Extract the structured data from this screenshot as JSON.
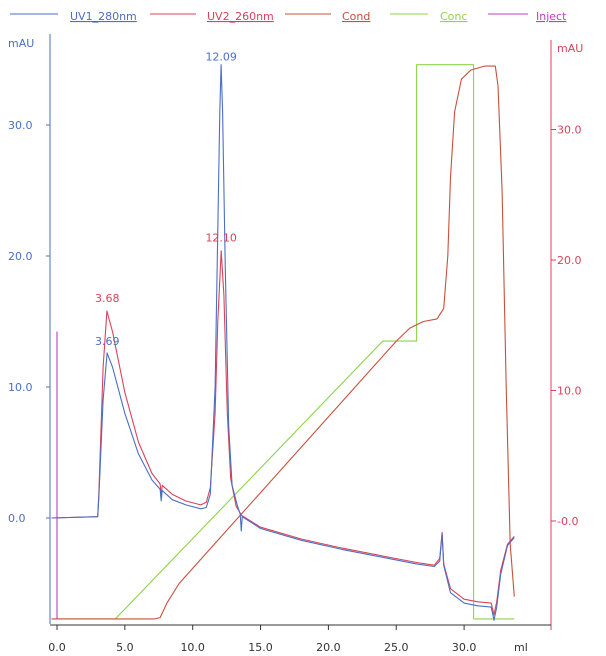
{
  "chart_data": {
    "type": "line",
    "xlabel": "ml",
    "xlim": [
      0,
      32.5
    ],
    "x_ticks": [
      "0.0",
      "5.0",
      "10.0",
      "15.0",
      "20.0",
      "25.0",
      "30.0"
    ],
    "left_axis": {
      "unit": "mAU",
      "ylim": [
        -8,
        35
      ],
      "ticks": [
        "0.0",
        "10.0",
        "20.0",
        "30.0"
      ],
      "color": "#4a6fc4"
    },
    "right_axis": {
      "unit": "mAU",
      "ylim": [
        -8,
        36
      ],
      "ticks": [
        "-0.0",
        "10.0",
        "20.0",
        "30.0"
      ],
      "color": "#d9435a"
    },
    "legend": {
      "placement": "top",
      "entries": [
        {
          "name": "UV1_280nm",
          "color": "#4a6fc4"
        },
        {
          "name": "UV2_260nm",
          "color": "#d9435a"
        },
        {
          "name": "Cond",
          "color": "#c8503c"
        },
        {
          "name": "Conc",
          "color": "#8ed44a"
        },
        {
          "name": "Inject",
          "color": "#c040b8"
        }
      ]
    },
    "peak_labels": [
      {
        "text": "12.09",
        "x": 12.1,
        "y": 34.6,
        "color": "#4a6fc4"
      },
      {
        "text": "12.10",
        "x": 12.1,
        "y": 20.8,
        "color": "#d9435a"
      },
      {
        "text": "3.68",
        "x": 3.7,
        "y": 16.2,
        "color": "#d9435a"
      },
      {
        "text": "3.69",
        "x": 3.7,
        "y": 12.9,
        "color": "#4a6fc4"
      }
    ],
    "series": [
      {
        "name": "UV1_280nm",
        "color": "#4a6fc4",
        "points": [
          [
            -0.4,
            0.0
          ],
          [
            3.0,
            0.1
          ],
          [
            3.08,
            1.5
          ],
          [
            3.4,
            9.0
          ],
          [
            3.69,
            12.6
          ],
          [
            4.1,
            11.5
          ],
          [
            5.0,
            8.0
          ],
          [
            6.0,
            4.9
          ],
          [
            7.0,
            2.9
          ],
          [
            7.6,
            2.2
          ],
          [
            7.68,
            1.3
          ],
          [
            7.75,
            2.1
          ],
          [
            8.5,
            1.4
          ],
          [
            9.5,
            1.0
          ],
          [
            10.6,
            0.7
          ],
          [
            11.0,
            0.8
          ],
          [
            11.3,
            1.8
          ],
          [
            11.65,
            10.0
          ],
          [
            11.85,
            22.0
          ],
          [
            12.0,
            31.0
          ],
          [
            12.09,
            34.6
          ],
          [
            12.2,
            31.0
          ],
          [
            12.4,
            19.0
          ],
          [
            12.65,
            7.0
          ],
          [
            12.9,
            2.5
          ],
          [
            13.3,
            0.9
          ],
          [
            13.5,
            0.3
          ],
          [
            13.58,
            -1.0
          ],
          [
            13.65,
            0.1
          ],
          [
            15.0,
            -0.8
          ],
          [
            18.0,
            -1.7
          ],
          [
            21.0,
            -2.4
          ],
          [
            24.0,
            -3.0
          ],
          [
            26.5,
            -3.5
          ],
          [
            27.8,
            -3.7
          ],
          [
            28.2,
            -3.3
          ],
          [
            28.38,
            -1.2
          ],
          [
            28.5,
            -3.6
          ],
          [
            29.0,
            -5.7
          ],
          [
            30.0,
            -6.5
          ],
          [
            31.0,
            -6.7
          ],
          [
            32.0,
            -6.8
          ],
          [
            32.2,
            -7.8
          ],
          [
            32.4,
            -6.8
          ],
          [
            32.7,
            -4.3
          ],
          [
            33.2,
            -2.1
          ],
          [
            33.7,
            -1.5
          ]
        ]
      },
      {
        "name": "UV2_260nm",
        "color": "#d9435a",
        "points": [
          [
            -0.4,
            0.0
          ],
          [
            3.0,
            0.1
          ],
          [
            3.08,
            1.8
          ],
          [
            3.4,
            11.5
          ],
          [
            3.68,
            15.8
          ],
          [
            4.1,
            14.2
          ],
          [
            5.0,
            9.6
          ],
          [
            6.0,
            5.8
          ],
          [
            7.0,
            3.4
          ],
          [
            7.6,
            2.6
          ],
          [
            7.68,
            1.7
          ],
          [
            7.75,
            2.5
          ],
          [
            8.5,
            1.8
          ],
          [
            9.5,
            1.3
          ],
          [
            10.6,
            1.0
          ],
          [
            11.0,
            1.2
          ],
          [
            11.3,
            2.3
          ],
          [
            11.65,
            8.0
          ],
          [
            11.85,
            15.0
          ],
          [
            12.1,
            20.4
          ],
          [
            12.3,
            17.0
          ],
          [
            12.55,
            8.0
          ],
          [
            12.8,
            3.0
          ],
          [
            13.2,
            0.9
          ],
          [
            13.6,
            0.2
          ],
          [
            15.0,
            -0.7
          ],
          [
            18.0,
            -1.6
          ],
          [
            21.0,
            -2.3
          ],
          [
            24.0,
            -2.9
          ],
          [
            26.5,
            -3.4
          ],
          [
            27.8,
            -3.6
          ],
          [
            28.2,
            -3.1
          ],
          [
            28.38,
            -1.1
          ],
          [
            28.5,
            -3.5
          ],
          [
            29.0,
            -5.4
          ],
          [
            30.0,
            -6.2
          ],
          [
            31.0,
            -6.4
          ],
          [
            32.0,
            -6.5
          ],
          [
            32.2,
            -7.4
          ],
          [
            32.4,
            -6.4
          ],
          [
            32.7,
            -4.0
          ],
          [
            33.2,
            -2.0
          ],
          [
            33.7,
            -1.4
          ]
        ]
      },
      {
        "name": "Cond",
        "color": "#c8503c",
        "points": [
          [
            -0.4,
            -7.7
          ],
          [
            7.2,
            -7.7
          ],
          [
            7.6,
            -7.6
          ],
          [
            8.1,
            -6.5
          ],
          [
            9.0,
            -5.0
          ],
          [
            25.0,
            13.5
          ],
          [
            26.0,
            14.5
          ],
          [
            27.0,
            15.0
          ],
          [
            28.0,
            15.2
          ],
          [
            28.5,
            16.0
          ],
          [
            28.8,
            20.0
          ],
          [
            29.0,
            26.0
          ],
          [
            29.3,
            31.0
          ],
          [
            29.8,
            33.5
          ],
          [
            30.5,
            34.2
          ],
          [
            31.5,
            34.5
          ],
          [
            32.3,
            34.5
          ],
          [
            32.5,
            33.0
          ],
          [
            32.8,
            25.0
          ],
          [
            33.1,
            10.0
          ],
          [
            33.4,
            -2.0
          ],
          [
            33.7,
            -6.0
          ]
        ]
      },
      {
        "name": "Conc",
        "color": "#8ed44a",
        "points": [
          [
            -0.4,
            -7.7
          ],
          [
            4.3,
            -7.7
          ],
          [
            24.0,
            13.5
          ],
          [
            26.5,
            13.5
          ],
          [
            26.5,
            34.6
          ],
          [
            30.7,
            34.6
          ],
          [
            30.7,
            -7.7
          ],
          [
            33.7,
            -7.7
          ]
        ]
      },
      {
        "name": "Inject",
        "color": "#c040b8",
        "points": [
          [
            0.0,
            -7.7
          ],
          [
            0.0,
            14.2
          ],
          [
            0.0,
            -7.7
          ]
        ]
      }
    ]
  }
}
